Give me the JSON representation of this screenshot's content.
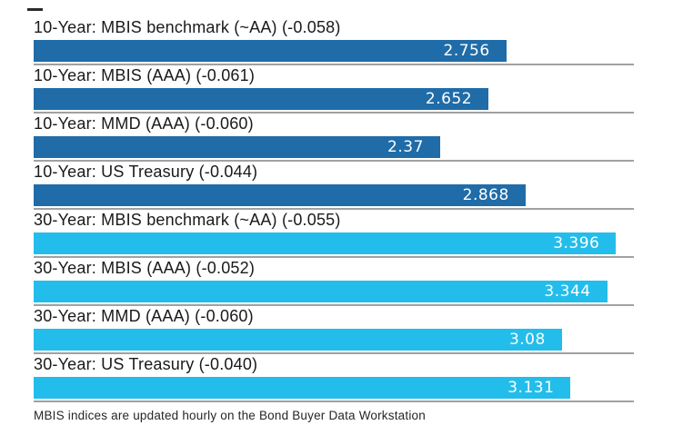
{
  "chart_data": {
    "type": "bar",
    "orientation": "horizontal",
    "title": "",
    "xlabel": "",
    "ylabel": "",
    "xlim": [
      0,
      3.5
    ],
    "grid": "row-separator-lines",
    "legend": "none",
    "groups": {
      "10-year": "#1f6ca8",
      "30-year": "#23bdeb"
    },
    "rows": [
      {
        "label": "10-Year: MBIS benchmark (~AA) (-0.058)",
        "value": 2.756,
        "value_label": "2.756",
        "change": -0.058,
        "group": "10-year"
      },
      {
        "label": "10-Year: MBIS (AAA) (-0.061)",
        "value": 2.652,
        "value_label": "2.652",
        "change": -0.061,
        "group": "10-year"
      },
      {
        "label": "10-Year: MMD (AAA) (-0.060)",
        "value": 2.37,
        "value_label": "2.37",
        "change": -0.06,
        "group": "10-year"
      },
      {
        "label": "10-Year: US Treasury (-0.044)",
        "value": 2.868,
        "value_label": "2.868",
        "change": -0.044,
        "group": "10-year"
      },
      {
        "label": "30-Year: MBIS benchmark (~AA) (-0.055)",
        "value": 3.396,
        "value_label": "3.396",
        "change": -0.055,
        "group": "30-year"
      },
      {
        "label": "30-Year: MBIS (AAA) (-0.052)",
        "value": 3.344,
        "value_label": "3.344",
        "change": -0.052,
        "group": "30-year"
      },
      {
        "label": "30-Year: MMD (AAA) (-0.060)",
        "value": 3.08,
        "value_label": "3.08",
        "change": -0.06,
        "group": "30-year"
      },
      {
        "label": "30-Year: US Treasury (-0.040)",
        "value": 3.131,
        "value_label": "3.131",
        "change": -0.04,
        "group": "30-year"
      }
    ]
  },
  "footer": {
    "note": "MBIS indices are updated hourly on the Bond Buyer Data Workstation"
  },
  "colors": {
    "bar_10_year": "#1f6ca8",
    "bar_30_year": "#23bdeb",
    "grid_line": "#a1a1a1",
    "label_text": "#1a1a1a",
    "bar_value_text": "#ffffff",
    "footer_text": "#262626",
    "background": "#ffffff"
  }
}
